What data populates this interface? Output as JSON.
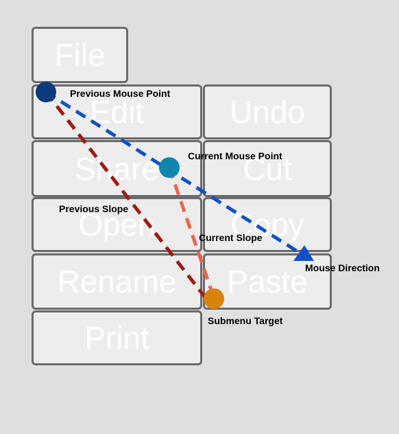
{
  "menu": {
    "file": "File",
    "edit": "Edit",
    "share": "Share",
    "open": "Open",
    "rename": "Rename",
    "print": "Print"
  },
  "submenu": {
    "undo": "Undo",
    "cut": "Cut",
    "copy": "Copy",
    "paste": "Paste"
  },
  "annotations": {
    "previous_mouse_point": "Previous Mouse Point",
    "current_mouse_point": "Current Mouse Point",
    "previous_slope": "Previous Slope",
    "current_slope": "Current Slope",
    "mouse_direction": "Mouse Direction",
    "submenu_target": "Submenu Target"
  },
  "colors": {
    "previous_point": "#0d3a7a",
    "current_point": "#1185ad",
    "target_point": "#d9820a",
    "previous_slope": "#a01a10",
    "current_slope": "#f26350",
    "mouse_direction": "#1050c8",
    "button_fill": "#ededed",
    "button_border": "#6b6b6b",
    "background": "#dfdfdf"
  }
}
